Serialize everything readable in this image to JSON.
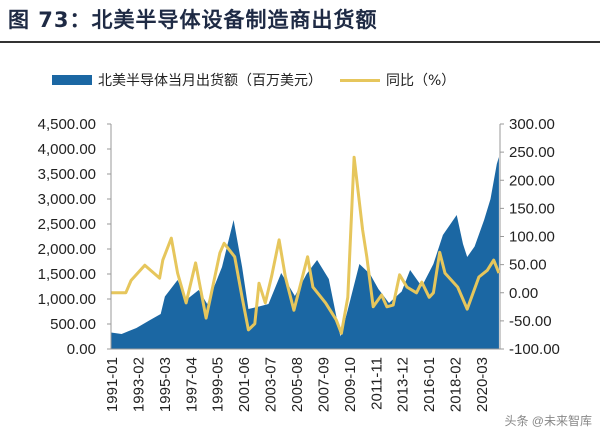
{
  "title": "图 73：北美半导体设备制造商出货额",
  "watermark": "头条 @未来智库",
  "colors": {
    "shipments": "#1b67a3",
    "yoy": "#e6c65c"
  },
  "chart_data": {
    "type": "area+line",
    "legend_position": "top",
    "grid": false,
    "x_range": [
      "1991-01",
      "2021-09"
    ],
    "x_tick_labels": [
      "1991-01",
      "1993-02",
      "1995-03",
      "1997-04",
      "1999-05",
      "2001-06",
      "2003-07",
      "2005-08",
      "2007-09",
      "2009-10",
      "2011-11",
      "2013-12",
      "2016-01",
      "2018-02",
      "2020-03"
    ],
    "y_left": {
      "range": [
        0,
        4500
      ],
      "tick_labels": [
        "0.00",
        "500.00",
        "1,000.00",
        "1,500.00",
        "2,000.00",
        "2,500.00",
        "3,000.00",
        "3,500.00",
        "4,000.00",
        "4,500.00"
      ]
    },
    "y_right": {
      "range": [
        -100,
        300
      ],
      "tick_labels": [
        "-100.00",
        "-50.00",
        "0.00",
        "50.00",
        "100.00",
        "150.00",
        "200.00",
        "250.00",
        "300.00"
      ]
    },
    "series": [
      {
        "name": "北美半导体当月出货额（百万美元）",
        "type": "area",
        "axis": "left",
        "points": [
          [
            "1991-01",
            330
          ],
          [
            "1991-11",
            300
          ],
          [
            "1993-01",
            420
          ],
          [
            "1994-02",
            580
          ],
          [
            "1994-12",
            700
          ],
          [
            "1995-04",
            1050
          ],
          [
            "1996-04",
            1380
          ],
          [
            "1996-12",
            980
          ],
          [
            "1997-12",
            1180
          ],
          [
            "1998-08",
            900
          ],
          [
            "1999-10",
            1640
          ],
          [
            "2000-09",
            2580
          ],
          [
            "2001-05",
            1640
          ],
          [
            "2001-11",
            800
          ],
          [
            "2002-09",
            850
          ],
          [
            "2003-06",
            900
          ],
          [
            "2004-06",
            1520
          ],
          [
            "2005-07",
            1060
          ],
          [
            "2006-06",
            1500
          ],
          [
            "2007-04",
            1780
          ],
          [
            "2008-03",
            1400
          ],
          [
            "2009-02",
            250
          ],
          [
            "2009-08",
            700
          ],
          [
            "2010-08",
            1700
          ],
          [
            "2011-06",
            1500
          ],
          [
            "2012-02",
            1200
          ],
          [
            "2012-12",
            920
          ],
          [
            "2013-12",
            1150
          ],
          [
            "2014-08",
            1580
          ],
          [
            "2015-07",
            1250
          ],
          [
            "2016-06",
            1700
          ],
          [
            "2017-03",
            2280
          ],
          [
            "2018-04",
            2680
          ],
          [
            "2018-10",
            2100
          ],
          [
            "2019-02",
            1840
          ],
          [
            "2019-09",
            2050
          ],
          [
            "2020-06",
            2580
          ],
          [
            "2020-12",
            3000
          ],
          [
            "2021-06",
            3700
          ],
          [
            "2021-08",
            3840
          ]
        ]
      },
      {
        "name": "同比（%）",
        "type": "line",
        "axis": "right",
        "points": [
          [
            "1991-01",
            0
          ],
          [
            "1992-03",
            0
          ],
          [
            "1992-08",
            22
          ],
          [
            "1993-09",
            49
          ],
          [
            "1994-11",
            26
          ],
          [
            "1995-02",
            58
          ],
          [
            "1995-10",
            97
          ],
          [
            "1996-04",
            35
          ],
          [
            "1996-12",
            -18
          ],
          [
            "1997-09",
            53
          ],
          [
            "1998-07",
            -45
          ],
          [
            "1999-08",
            71
          ],
          [
            "1999-12",
            88
          ],
          [
            "2000-10",
            64
          ],
          [
            "2001-05",
            -8
          ],
          [
            "2001-11",
            -66
          ],
          [
            "2002-05",
            -55
          ],
          [
            "2002-09",
            17
          ],
          [
            "2003-03",
            -18
          ],
          [
            "2003-09",
            30
          ],
          [
            "2004-04",
            94
          ],
          [
            "2004-10",
            28
          ],
          [
            "2005-06",
            -31
          ],
          [
            "2006-07",
            64
          ],
          [
            "2006-12",
            10
          ],
          [
            "2007-12",
            -18
          ],
          [
            "2008-10",
            -48
          ],
          [
            "2009-03",
            -72
          ],
          [
            "2009-09",
            -8
          ],
          [
            "2010-03",
            241
          ],
          [
            "2010-11",
            112
          ],
          [
            "2011-03",
            64
          ],
          [
            "2011-09",
            -25
          ],
          [
            "2012-05",
            -4
          ],
          [
            "2012-10",
            -25
          ],
          [
            "2013-04",
            -22
          ],
          [
            "2013-10",
            32
          ],
          [
            "2014-05",
            10
          ],
          [
            "2015-02",
            0
          ],
          [
            "2015-07",
            19
          ],
          [
            "2016-02",
            -8
          ],
          [
            "2016-06",
            0
          ],
          [
            "2016-12",
            72
          ],
          [
            "2017-05",
            35
          ],
          [
            "2018-05",
            10
          ],
          [
            "2019-02",
            -29
          ],
          [
            "2020-01",
            28
          ],
          [
            "2020-09",
            40
          ],
          [
            "2021-03",
            58
          ],
          [
            "2021-08",
            35
          ]
        ]
      }
    ]
  }
}
